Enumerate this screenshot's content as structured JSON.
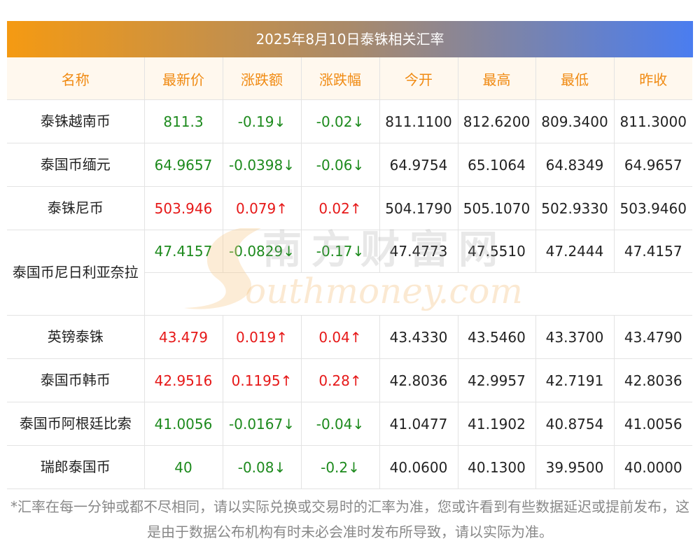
{
  "title": "2025年8月10日泰铢相关汇率",
  "headers": [
    "名称",
    "最新价",
    "涨跌额",
    "涨跌幅",
    "今开",
    "最高",
    "最低",
    "昨收"
  ],
  "rows": [
    {
      "name": "泰铢越南币",
      "price": "811.3",
      "change": "-0.19↓",
      "pct": "-0.02↓",
      "open": "811.1100",
      "high": "812.6200",
      "low": "809.3400",
      "prev": "811.3000",
      "trend": "down"
    },
    {
      "name": "泰国币缅元",
      "price": "64.9657",
      "change": "-0.0398↓",
      "pct": "-0.06↓",
      "open": "64.9754",
      "high": "65.1064",
      "low": "64.8349",
      "prev": "64.9657",
      "trend": "down"
    },
    {
      "name": "泰铢尼币",
      "price": "503.946",
      "change": "0.079↑",
      "pct": "0.02↑",
      "open": "504.1790",
      "high": "505.1070",
      "low": "502.9330",
      "prev": "503.9460",
      "trend": "up"
    },
    {
      "name": "泰国币尼日利亚奈拉",
      "price": "47.4157",
      "change": "-0.0829↓",
      "pct": "-0.17↓",
      "open": "47.4773",
      "high": "47.5510",
      "low": "47.2444",
      "prev": "47.4157",
      "trend": "down"
    },
    {
      "name": "英镑泰铢",
      "price": "43.479",
      "change": "0.019↑",
      "pct": "0.04↑",
      "open": "43.4330",
      "high": "43.5460",
      "low": "43.3700",
      "prev": "43.4790",
      "trend": "up"
    },
    {
      "name": "泰国币韩币",
      "price": "42.9516",
      "change": "0.1195↑",
      "pct": "0.28↑",
      "open": "42.8036",
      "high": "42.9957",
      "low": "42.7191",
      "prev": "42.8036",
      "trend": "up"
    },
    {
      "name": "泰国币阿根廷比索",
      "price": "41.0056",
      "change": "-0.0167↓",
      "pct": "-0.04↓",
      "open": "41.0477",
      "high": "41.1902",
      "low": "40.8754",
      "prev": "41.0056",
      "trend": "down"
    },
    {
      "name": "瑞郎泰国币",
      "price": "40",
      "change": "-0.08↓",
      "pct": "-0.2↓",
      "open": "40.0600",
      "high": "40.1300",
      "low": "39.9500",
      "prev": "40.0000",
      "trend": "down"
    }
  ],
  "watermark": {
    "cn": "南方财富网",
    "en": "outhmoney.com"
  },
  "footnote": "*汇率在每一分钟或都不尽相同，请以实际兑换或交易时的汇率为准，您或许看到有些数据延迟或提前发布，这是由于数据公布机构有时未必会准时发布所导致，请以实际为准。",
  "colors": {
    "up": "#e61818",
    "down": "#1d8a1d",
    "header_text": "#f08a12",
    "header_bg": "#fff8ee",
    "gradient_start": "#f59a12",
    "gradient_end": "#4a7df0"
  }
}
